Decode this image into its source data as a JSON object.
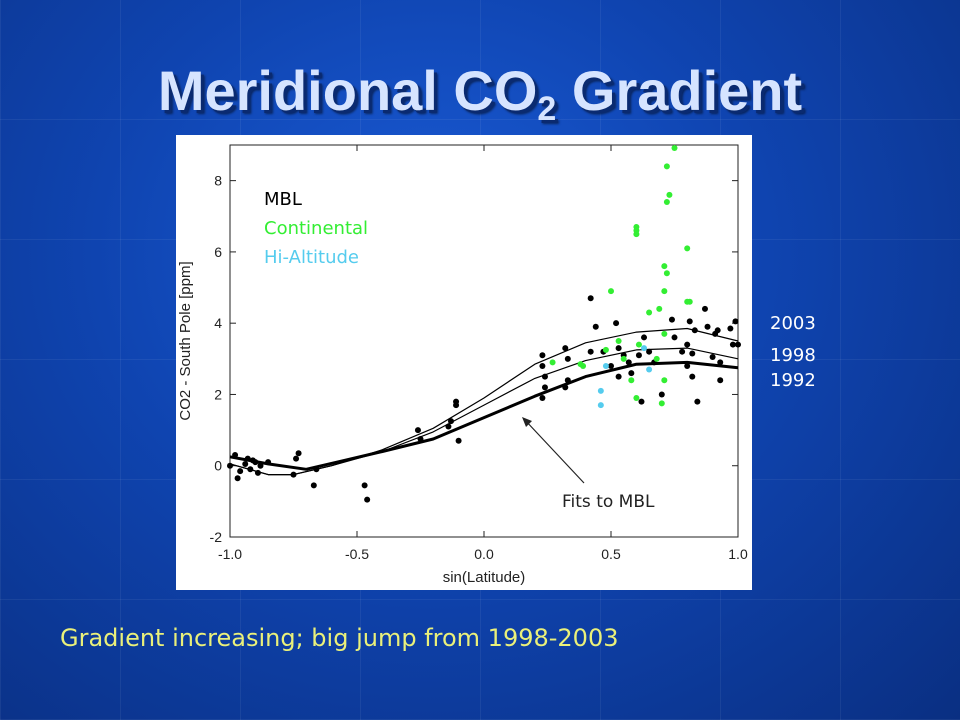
{
  "slide": {
    "title_main": "Meridional CO",
    "title_sub": "2",
    "title_tail": " Gradient",
    "caption": "Gradient increasing; big jump from 1998-2003",
    "year_labels": [
      "2003",
      "1998",
      "1992"
    ]
  },
  "chart_data": {
    "type": "scatter",
    "xlabel": "sin(Latitude)",
    "ylabel": "CO2 - South Pole [ppm]",
    "xlim": [
      -1.0,
      1.0
    ],
    "ylim": [
      -2,
      9
    ],
    "xticks": [
      -1.0,
      -0.5,
      0.0,
      0.5,
      1.0
    ],
    "xtick_labels": [
      "-1.0",
      "-0.5",
      "0.0",
      "0.5",
      "1.0"
    ],
    "yticks": [
      -2,
      0,
      2,
      4,
      6,
      8
    ],
    "ytick_labels": [
      "-2",
      "0",
      "2",
      "4",
      "6",
      "8"
    ],
    "grid": false,
    "legend_position": "top-left",
    "legend": [
      {
        "label": "MBL",
        "color": "#000000"
      },
      {
        "label": "Continental",
        "color": "#33ee33"
      },
      {
        "label": "Hi-Altitude",
        "color": "#55ccee"
      }
    ],
    "annotation": {
      "text": "Fits to MBL",
      "arrow_to": [
        0.14,
        1.3
      ]
    },
    "series": [
      {
        "name": "MBL",
        "color": "#000000",
        "points": [
          [
            -1.0,
            0.0
          ],
          [
            -0.98,
            0.3
          ],
          [
            -0.97,
            -0.35
          ],
          [
            -0.96,
            -0.15
          ],
          [
            -0.94,
            0.05
          ],
          [
            -0.93,
            0.2
          ],
          [
            -0.92,
            -0.1
          ],
          [
            -0.91,
            0.15
          ],
          [
            -0.9,
            0.1
          ],
          [
            -0.89,
            -0.2
          ],
          [
            -0.88,
            0.0
          ],
          [
            -0.85,
            0.1
          ],
          [
            -0.75,
            -0.25
          ],
          [
            -0.74,
            0.2
          ],
          [
            -0.73,
            0.35
          ],
          [
            -0.67,
            -0.55
          ],
          [
            -0.66,
            -0.1
          ],
          [
            -0.47,
            -0.55
          ],
          [
            -0.46,
            -0.95
          ],
          [
            -0.26,
            1.0
          ],
          [
            -0.25,
            0.75
          ],
          [
            -0.14,
            1.1
          ],
          [
            -0.13,
            1.25
          ],
          [
            -0.11,
            1.8
          ],
          [
            -0.11,
            1.7
          ],
          [
            -0.1,
            0.7
          ],
          [
            0.23,
            3.1
          ],
          [
            0.23,
            2.8
          ],
          [
            0.24,
            2.5
          ],
          [
            0.23,
            1.9
          ],
          [
            0.24,
            2.2
          ],
          [
            0.32,
            3.3
          ],
          [
            0.33,
            3.0
          ],
          [
            0.33,
            2.4
          ],
          [
            0.32,
            2.2
          ],
          [
            0.42,
            4.7
          ],
          [
            0.42,
            3.2
          ],
          [
            0.44,
            3.9
          ],
          [
            0.47,
            3.2
          ],
          [
            0.5,
            2.8
          ],
          [
            0.52,
            4.0
          ],
          [
            0.53,
            3.3
          ],
          [
            0.53,
            2.5
          ],
          [
            0.55,
            3.1
          ],
          [
            0.57,
            2.9
          ],
          [
            0.58,
            2.6
          ],
          [
            0.61,
            3.1
          ],
          [
            0.62,
            1.8
          ],
          [
            0.63,
            3.6
          ],
          [
            0.65,
            3.2
          ],
          [
            0.67,
            2.9
          ],
          [
            0.7,
            2.0
          ],
          [
            0.74,
            4.1
          ],
          [
            0.75,
            3.6
          ],
          [
            0.78,
            3.2
          ],
          [
            0.8,
            2.8
          ],
          [
            0.8,
            3.4
          ],
          [
            0.81,
            4.05
          ],
          [
            0.82,
            3.15
          ],
          [
            0.82,
            2.5
          ],
          [
            0.83,
            3.8
          ],
          [
            0.84,
            1.8
          ],
          [
            0.87,
            4.4
          ],
          [
            0.88,
            3.9
          ],
          [
            0.9,
            3.05
          ],
          [
            0.91,
            3.7
          ],
          [
            0.92,
            3.8
          ],
          [
            0.93,
            2.4
          ],
          [
            0.93,
            2.9
          ],
          [
            0.97,
            3.85
          ],
          [
            0.98,
            3.4
          ],
          [
            0.99,
            4.05
          ],
          [
            1.0,
            3.4
          ]
        ]
      },
      {
        "name": "Continental",
        "color": "#33ee33",
        "points": [
          [
            0.27,
            2.9
          ],
          [
            0.38,
            2.85
          ],
          [
            0.39,
            2.8
          ],
          [
            0.48,
            3.25
          ],
          [
            0.5,
            4.9
          ],
          [
            0.53,
            3.5
          ],
          [
            0.55,
            3.0
          ],
          [
            0.58,
            2.4
          ],
          [
            0.6,
            6.7
          ],
          [
            0.6,
            6.6
          ],
          [
            0.6,
            6.5
          ],
          [
            0.6,
            1.9
          ],
          [
            0.61,
            3.4
          ],
          [
            0.65,
            4.3
          ],
          [
            0.68,
            3.0
          ],
          [
            0.69,
            4.4
          ],
          [
            0.7,
            1.75
          ],
          [
            0.71,
            5.6
          ],
          [
            0.71,
            3.7
          ],
          [
            0.71,
            4.9
          ],
          [
            0.71,
            2.4
          ],
          [
            0.72,
            8.4
          ],
          [
            0.72,
            7.4
          ],
          [
            0.72,
            5.4
          ],
          [
            0.73,
            7.6
          ],
          [
            0.75,
            9.0
          ],
          [
            0.8,
            4.6
          ],
          [
            0.8,
            6.1
          ],
          [
            0.81,
            4.6
          ]
        ]
      },
      {
        "name": "Hi-Altitude",
        "color": "#55ccee",
        "points": [
          [
            0.46,
            2.1
          ],
          [
            0.46,
            1.7
          ],
          [
            0.48,
            2.8
          ],
          [
            0.63,
            3.3
          ],
          [
            0.65,
            2.7
          ]
        ]
      }
    ],
    "fit_lines": [
      {
        "label": "2003",
        "stroke": "thin",
        "points": [
          [
            -1.0,
            0.05
          ],
          [
            -0.85,
            -0.25
          ],
          [
            -0.75,
            -0.25
          ],
          [
            -0.6,
            0.0
          ],
          [
            -0.4,
            0.45
          ],
          [
            -0.2,
            1.05
          ],
          [
            0.0,
            1.9
          ],
          [
            0.2,
            2.85
          ],
          [
            0.4,
            3.45
          ],
          [
            0.6,
            3.75
          ],
          [
            0.8,
            3.85
          ],
          [
            1.0,
            3.5
          ]
        ]
      },
      {
        "label": "1998",
        "stroke": "thin",
        "points": [
          [
            -1.0,
            0.05
          ],
          [
            -0.85,
            -0.25
          ],
          [
            -0.75,
            -0.25
          ],
          [
            -0.6,
            0.0
          ],
          [
            -0.4,
            0.4
          ],
          [
            -0.2,
            0.95
          ],
          [
            0.0,
            1.7
          ],
          [
            0.2,
            2.45
          ],
          [
            0.4,
            2.95
          ],
          [
            0.6,
            3.25
          ],
          [
            0.8,
            3.3
          ],
          [
            1.0,
            3.0
          ]
        ]
      },
      {
        "label": "1992",
        "stroke": "thick",
        "points": [
          [
            -1.0,
            0.25
          ],
          [
            -0.85,
            0.05
          ],
          [
            -0.7,
            -0.1
          ],
          [
            -0.55,
            0.15
          ],
          [
            -0.4,
            0.4
          ],
          [
            -0.2,
            0.75
          ],
          [
            0.0,
            1.35
          ],
          [
            0.2,
            1.95
          ],
          [
            0.4,
            2.5
          ],
          [
            0.6,
            2.85
          ],
          [
            0.8,
            2.9
          ],
          [
            1.0,
            2.75
          ]
        ]
      }
    ]
  }
}
